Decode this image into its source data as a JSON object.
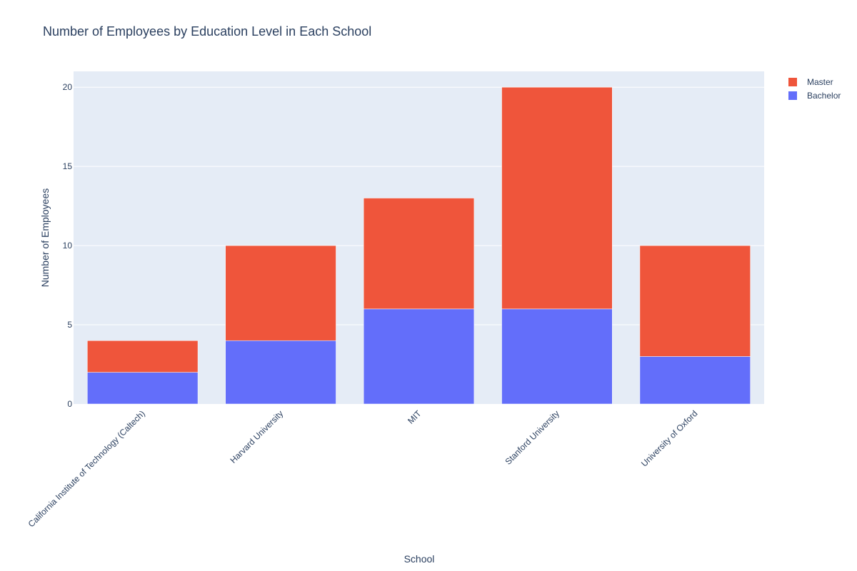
{
  "chart_data": {
    "type": "bar",
    "barmode": "stack",
    "title": "Number of Employees by Education Level in Each School",
    "xlabel": "School",
    "ylabel": "Number of Employees",
    "categories": [
      "California Institute of Technology (Caltech)",
      "Harvard University",
      "MIT",
      "Stanford University",
      "University of Oxford"
    ],
    "series": [
      {
        "name": "Bachelor",
        "color": "#636efa",
        "values": [
          2,
          4,
          6,
          6,
          3
        ]
      },
      {
        "name": "Master",
        "color": "#ef553b",
        "values": [
          2,
          6,
          7,
          14,
          7
        ]
      }
    ],
    "ylim": [
      0,
      21
    ],
    "yticks": [
      0,
      5,
      10,
      15,
      20
    ],
    "legend_order": [
      "Master",
      "Bachelor"
    ],
    "legend_position": "top-right",
    "grid": true,
    "plot_background": "#e5ecf6"
  }
}
